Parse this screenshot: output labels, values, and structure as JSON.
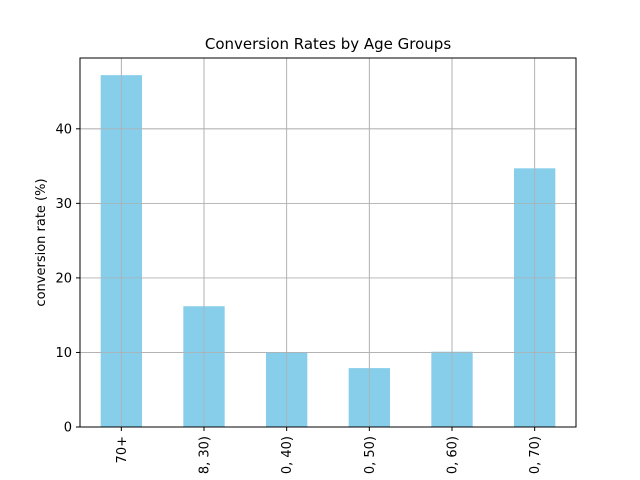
{
  "chart_data": {
    "type": "bar",
    "title": "Conversion Rates by Age Groups",
    "xlabel": "",
    "ylabel": "conversion rate (%)",
    "categories": [
      "70+",
      "8, 30)",
      "0, 40)",
      "0, 50)",
      "0, 60)",
      "0, 70)"
    ],
    "values": [
      47.2,
      16.2,
      10.0,
      7.9,
      10.1,
      34.7
    ],
    "ylim": [
      0,
      49.5
    ],
    "yticks": [
      0,
      10,
      20,
      30,
      40
    ],
    "grid": true,
    "bar_color": "#87ceeb"
  }
}
